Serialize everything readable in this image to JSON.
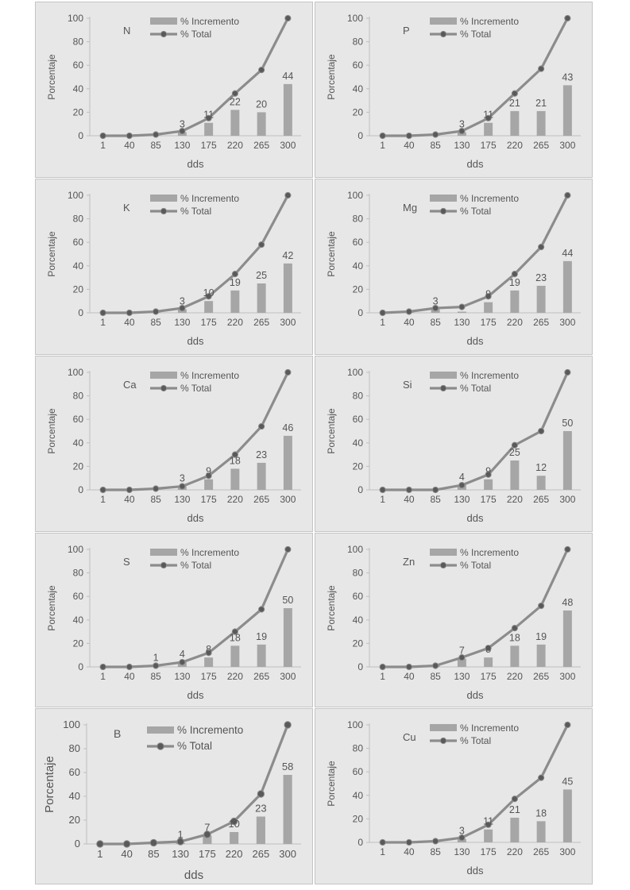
{
  "colors": {
    "bar": "#a6a6a6",
    "line": "#8c8c8c",
    "marker": "#5a5a5a",
    "axis": "#bfbfbf",
    "text": "#555555",
    "panel": "#e7e7e7"
  },
  "chart_data": [
    {
      "type": "bar",
      "element": "N",
      "xlabel": "dds",
      "ylabel": "Porcentaje",
      "ylim": [
        0,
        100
      ],
      "yticks": [
        "0",
        "20",
        "40",
        "60",
        "80",
        "100"
      ],
      "categories": [
        "1",
        "40",
        "85",
        "130",
        "175",
        "220",
        "265",
        "300"
      ],
      "legend": [
        "% Incremento",
        "% Total"
      ],
      "legend_placement": "top-center",
      "series": [
        {
          "name": "% Incremento",
          "type": "bar",
          "values": [
            0,
            0,
            1,
            3,
            11,
            22,
            20,
            44
          ],
          "labels": [
            "",
            "",
            "",
            "3",
            "11",
            "22",
            "20",
            "44"
          ]
        },
        {
          "name": "% Total",
          "type": "line",
          "values": [
            0,
            0,
            1,
            4,
            15,
            36,
            56,
            100
          ]
        }
      ]
    },
    {
      "type": "bar",
      "element": "P",
      "xlabel": "dds",
      "ylabel": "Porcentaje",
      "ylim": [
        0,
        100
      ],
      "yticks": [
        "0",
        "20",
        "40",
        "60",
        "80",
        "100"
      ],
      "categories": [
        "1",
        "40",
        "85",
        "130",
        "175",
        "220",
        "265",
        "300"
      ],
      "legend": [
        "% Incremento",
        "% Total"
      ],
      "legend_placement": "top-center",
      "series": [
        {
          "name": "% Incremento",
          "type": "bar",
          "values": [
            0,
            0,
            1,
            3,
            11,
            21,
            21,
            43
          ],
          "labels": [
            "",
            "",
            "",
            "3",
            "11",
            "21",
            "21",
            "43"
          ]
        },
        {
          "name": "% Total",
          "type": "line",
          "values": [
            0,
            0,
            1,
            4,
            15,
            36,
            57,
            100
          ]
        }
      ]
    },
    {
      "type": "bar",
      "element": "K",
      "xlabel": "dds",
      "ylabel": "Porcentaje",
      "ylim": [
        0,
        100
      ],
      "yticks": [
        "0",
        "20",
        "40",
        "60",
        "80",
        "100"
      ],
      "categories": [
        "1",
        "40",
        "85",
        "130",
        "175",
        "220",
        "265",
        "300"
      ],
      "legend": [
        "% Incremento",
        "% Total"
      ],
      "legend_placement": "top-center",
      "series": [
        {
          "name": "% Incremento",
          "type": "bar",
          "values": [
            0,
            0,
            1,
            3,
            10,
            19,
            25,
            42
          ],
          "labels": [
            "",
            "",
            "",
            "3",
            "10",
            "19",
            "25",
            "42"
          ]
        },
        {
          "name": "% Total",
          "type": "line",
          "values": [
            0,
            0,
            1,
            4,
            14,
            33,
            58,
            100
          ]
        }
      ]
    },
    {
      "type": "bar",
      "element": "Mg",
      "xlabel": "dds",
      "ylabel": "Porcentaje",
      "ylim": [
        0,
        100
      ],
      "yticks": [
        "0",
        "20",
        "40",
        "60",
        "80",
        "100"
      ],
      "categories": [
        "1",
        "40",
        "85",
        "130",
        "175",
        "220",
        "265",
        "300"
      ],
      "legend": [
        "% Incremento",
        "% Total"
      ],
      "legend_placement": "top-center",
      "series": [
        {
          "name": "% Incremento",
          "type": "bar",
          "values": [
            0,
            1,
            3,
            1,
            9,
            19,
            23,
            44
          ],
          "labels": [
            "",
            "",
            "3",
            "",
            "9",
            "19",
            "23",
            "44"
          ]
        },
        {
          "name": "% Total",
          "type": "line",
          "values": [
            0,
            1,
            4,
            5,
            14,
            33,
            56,
            100
          ]
        }
      ]
    },
    {
      "type": "bar",
      "element": "Ca",
      "xlabel": "dds",
      "ylabel": "Porcentaje",
      "ylim": [
        0,
        100
      ],
      "yticks": [
        "0",
        "20",
        "40",
        "60",
        "80",
        "100"
      ],
      "categories": [
        "1",
        "40",
        "85",
        "130",
        "175",
        "220",
        "265",
        "300"
      ],
      "legend": [
        "% Incremento",
        "% Total"
      ],
      "legend_placement": "top-center",
      "series": [
        {
          "name": "% Incremento",
          "type": "bar",
          "values": [
            0,
            0,
            1,
            3,
            9,
            18,
            23,
            46
          ],
          "labels": [
            "",
            "",
            "",
            "3",
            "9",
            "18",
            "23",
            "46"
          ]
        },
        {
          "name": "% Total",
          "type": "line",
          "values": [
            0,
            0,
            1,
            3,
            12,
            30,
            54,
            100
          ]
        }
      ]
    },
    {
      "type": "bar",
      "element": "Si",
      "xlabel": "dds",
      "ylabel": "Porcentaje",
      "ylim": [
        0,
        100
      ],
      "yticks": [
        "0",
        "20",
        "40",
        "60",
        "80",
        "100"
      ],
      "categories": [
        "1",
        "40",
        "85",
        "130",
        "175",
        "220",
        "265",
        "300"
      ],
      "legend": [
        "% Incremento",
        "% Total"
      ],
      "legend_placement": "top-center",
      "series": [
        {
          "name": "% Incremento",
          "type": "bar",
          "values": [
            0,
            0,
            0,
            4,
            9,
            25,
            12,
            50
          ],
          "labels": [
            "",
            "",
            "",
            "4",
            "9",
            "25",
            "12",
            "50"
          ]
        },
        {
          "name": "% Total",
          "type": "line",
          "values": [
            0,
            0,
            0,
            4,
            13,
            38,
            50,
            100
          ]
        }
      ]
    },
    {
      "type": "bar",
      "element": "S",
      "xlabel": "dds",
      "ylabel": "Porcentaje",
      "ylim": [
        0,
        100
      ],
      "yticks": [
        "0",
        "20",
        "40",
        "60",
        "80",
        "100"
      ],
      "categories": [
        "1",
        "40",
        "85",
        "130",
        "175",
        "220",
        "265",
        "300"
      ],
      "legend": [
        "% Incremento",
        "% Total"
      ],
      "legend_placement": "top-center",
      "series": [
        {
          "name": "% Incremento",
          "type": "bar",
          "values": [
            0,
            0,
            1,
            4,
            8,
            18,
            19,
            50
          ],
          "labels": [
            "",
            "",
            "1",
            "4",
            "8",
            "18",
            "19",
            "50"
          ]
        },
        {
          "name": "% Total",
          "type": "line",
          "values": [
            0,
            0,
            1,
            4,
            12,
            30,
            49,
            100
          ]
        }
      ]
    },
    {
      "type": "bar",
      "element": "Zn",
      "xlabel": "dds",
      "ylabel": "Porcentaje",
      "ylim": [
        0,
        100
      ],
      "yticks": [
        "0",
        "20",
        "40",
        "60",
        "80",
        "100"
      ],
      "categories": [
        "1",
        "40",
        "85",
        "130",
        "175",
        "220",
        "265",
        "300"
      ],
      "legend": [
        "% Incremento",
        "% Total"
      ],
      "legend_placement": "top-center",
      "series": [
        {
          "name": "% Incremento",
          "type": "bar",
          "values": [
            0,
            0,
            1,
            7,
            8,
            18,
            19,
            48
          ],
          "labels": [
            "",
            "",
            "",
            "7",
            "8",
            "18",
            "19",
            "48"
          ]
        },
        {
          "name": "% Total",
          "type": "line",
          "values": [
            0,
            0,
            1,
            8,
            16,
            33,
            52,
            100
          ]
        }
      ]
    },
    {
      "type": "bar",
      "element": "B",
      "xlabel": "dds",
      "ylabel": "Porcentaje",
      "ylim": [
        0,
        100
      ],
      "yticks": [
        "0",
        "20",
        "40",
        "60",
        "80",
        "100"
      ],
      "categories": [
        "1",
        "40",
        "85",
        "130",
        "175",
        "220",
        "265",
        "300"
      ],
      "legend": [
        "% Incremento",
        "% Total"
      ],
      "legend_placement": "top-center",
      "series": [
        {
          "name": "% Incremento",
          "type": "bar",
          "values": [
            0,
            0,
            1,
            1,
            7,
            10,
            23,
            58
          ],
          "labels": [
            "",
            "",
            "",
            "1",
            "7",
            "10",
            "23",
            "58"
          ]
        },
        {
          "name": "% Total",
          "type": "line",
          "values": [
            0,
            0,
            1,
            2,
            8,
            19,
            42,
            100
          ]
        }
      ]
    },
    {
      "type": "bar",
      "element": "Cu",
      "xlabel": "dds",
      "ylabel": "Porcentaje",
      "ylim": [
        0,
        100
      ],
      "yticks": [
        "0",
        "20",
        "40",
        "60",
        "80",
        "100"
      ],
      "categories": [
        "1",
        "40",
        "85",
        "130",
        "175",
        "220",
        "265",
        "300"
      ],
      "legend": [
        "% Incremento",
        "% Total"
      ],
      "legend_placement": "top-center",
      "series": [
        {
          "name": "% Incremento",
          "type": "bar",
          "values": [
            0,
            0,
            1,
            3,
            11,
            21,
            18,
            45
          ],
          "labels": [
            "",
            "",
            "",
            "3",
            "11",
            "21",
            "18",
            "45"
          ]
        },
        {
          "name": "% Total",
          "type": "line",
          "values": [
            0,
            0,
            1,
            4,
            15,
            37,
            55,
            100
          ]
        }
      ]
    }
  ]
}
